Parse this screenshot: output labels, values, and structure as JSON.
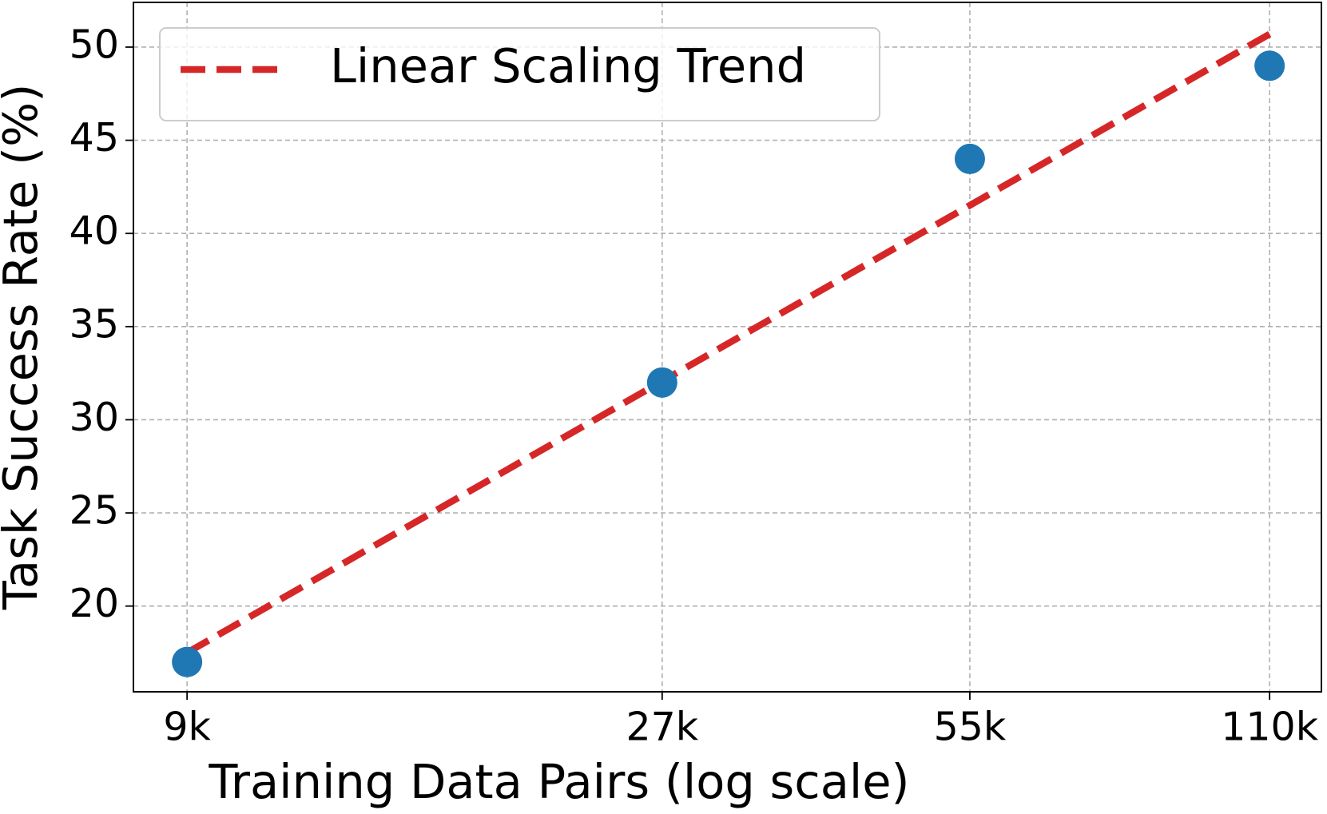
{
  "chart_data": {
    "type": "scatter",
    "x_label": "Training Data Pairs (log scale)",
    "y_label": "Task Success Rate (%)",
    "x_log": true,
    "xlim": [
      7950,
      124000
    ],
    "xticks": [
      {
        "value": 9000,
        "label": "9k"
      },
      {
        "value": 27000,
        "label": "27k"
      },
      {
        "value": 55000,
        "label": "55k"
      },
      {
        "value": 110000,
        "label": "110k"
      }
    ],
    "ylim": [
      15.4,
      52.4
    ],
    "yticks": [
      20,
      25,
      30,
      35,
      40,
      45,
      50
    ],
    "grid": true,
    "legend": "upper left",
    "series": [
      {
        "name": "Linear Scaling Trend",
        "type": "line",
        "dashed": true,
        "color": "#d62728",
        "x": [
          9000,
          110000
        ],
        "values": [
          17.5,
          50.7
        ]
      },
      {
        "type": "scatter",
        "color": "#1f77b4",
        "x": [
          9000,
          27000,
          55000,
          110000
        ],
        "values": [
          17,
          32,
          44,
          49
        ]
      }
    ]
  }
}
